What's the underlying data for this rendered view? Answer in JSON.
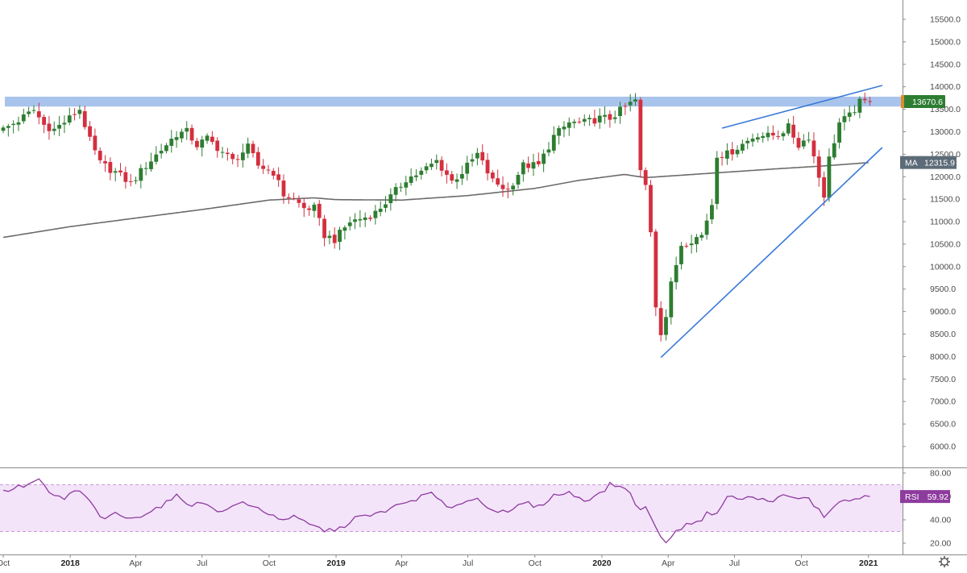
{
  "chart_data": [
    {
      "type": "candlestick",
      "title": "",
      "ylim": [
        5500,
        15800
      ],
      "yticks": [
        6000,
        6500,
        7000,
        7500,
        8000,
        8500,
        9000,
        9500,
        10000,
        10500,
        11000,
        11500,
        12000,
        12500,
        13000,
        13500,
        14000,
        14500,
        15000,
        15500
      ],
      "yticks_labels": [
        "6000.0",
        "6500.0",
        "7000.0",
        "7500.0",
        "8000.0",
        "8500.0",
        "9000.0",
        "9500.0",
        "10000.0",
        "10500.0",
        "11000.0",
        "11500.0",
        "12000.0",
        "12500.0",
        "13000.0",
        "13500.0",
        "14000.0",
        "14500.0",
        "15000.0",
        "15500.0"
      ],
      "x_start": "2017-10-01",
      "x_end": "2021-01-19",
      "time_labels": [
        {
          "date": "2017-10-01",
          "label": "Oct",
          "bold": false
        },
        {
          "date": "2018-01-01",
          "label": "2018",
          "bold": true
        },
        {
          "date": "2018-04-01",
          "label": "Apr",
          "bold": false
        },
        {
          "date": "2018-07-01",
          "label": "Jul",
          "bold": false
        },
        {
          "date": "2018-10-01",
          "label": "Oct",
          "bold": false
        },
        {
          "date": "2019-01-01",
          "label": "2019",
          "bold": true
        },
        {
          "date": "2019-04-01",
          "label": "Apr",
          "bold": false
        },
        {
          "date": "2019-07-01",
          "label": "Jul",
          "bold": false
        },
        {
          "date": "2019-10-01",
          "label": "Oct",
          "bold": false
        },
        {
          "date": "2020-01-01",
          "label": "2020",
          "bold": true
        },
        {
          "date": "2020-04-01",
          "label": "Apr",
          "bold": false
        },
        {
          "date": "2020-07-01",
          "label": "Jul",
          "bold": false
        },
        {
          "date": "2020-10-01",
          "label": "Oct",
          "bold": false
        },
        {
          "date": "2021-01-01",
          "label": "2021",
          "bold": true
        }
      ],
      "close_anchors": [
        [
          "2017-10-01",
          13050
        ],
        [
          "2017-10-22",
          13250
        ],
        [
          "2017-11-12",
          13480
        ],
        [
          "2017-11-26",
          13150
        ],
        [
          "2017-12-10",
          13050
        ],
        [
          "2017-12-31",
          13300
        ],
        [
          "2018-01-14",
          13500
        ],
        [
          "2018-01-28",
          12800
        ],
        [
          "2018-02-11",
          12300
        ],
        [
          "2018-03-04",
          12100
        ],
        [
          "2018-03-25",
          11850
        ],
        [
          "2018-04-15",
          12250
        ],
        [
          "2018-05-06",
          12600
        ],
        [
          "2018-05-27",
          12950
        ],
        [
          "2018-06-10",
          13000
        ],
        [
          "2018-06-24",
          12700
        ],
        [
          "2018-07-08",
          12850
        ],
        [
          "2018-07-29",
          12550
        ],
        [
          "2018-08-12",
          12350
        ],
        [
          "2018-09-02",
          12650
        ],
        [
          "2018-09-16",
          12250
        ],
        [
          "2018-10-07",
          12100
        ],
        [
          "2018-10-21",
          11600
        ],
        [
          "2018-11-04",
          11500
        ],
        [
          "2018-11-18",
          11300
        ],
        [
          "2018-12-02",
          11300
        ],
        [
          "2018-12-16",
          10700
        ],
        [
          "2018-12-30",
          10600
        ],
        [
          "2019-01-20",
          11000
        ],
        [
          "2019-02-10",
          11100
        ],
        [
          "2019-02-24",
          11200
        ],
        [
          "2019-03-17",
          11550
        ],
        [
          "2019-04-07",
          11950
        ],
        [
          "2019-04-28",
          12100
        ],
        [
          "2019-05-19",
          12350
        ],
        [
          "2019-06-09",
          11900
        ],
        [
          "2019-06-23",
          12100
        ],
        [
          "2019-07-14",
          12500
        ],
        [
          "2019-08-04",
          11900
        ],
        [
          "2019-08-25",
          11700
        ],
        [
          "2019-09-15",
          12250
        ],
        [
          "2019-10-06",
          12250
        ],
        [
          "2019-10-27",
          12900
        ],
        [
          "2019-11-17",
          13200
        ],
        [
          "2019-12-08",
          13200
        ],
        [
          "2019-12-29",
          13300
        ],
        [
          "2020-01-12",
          13300
        ],
        [
          "2020-02-02",
          13550
        ],
        [
          "2020-02-16",
          13700
        ],
        [
          "2020-02-23",
          12100
        ],
        [
          "2020-03-01",
          11800
        ],
        [
          "2020-03-08",
          10800
        ],
        [
          "2020-03-15",
          9150
        ],
        [
          "2020-03-22",
          8550
        ],
        [
          "2020-03-29",
          8900
        ],
        [
          "2020-04-05",
          9600
        ],
        [
          "2020-04-19",
          10500
        ],
        [
          "2020-05-03",
          10600
        ],
        [
          "2020-05-17",
          10700
        ],
        [
          "2020-05-31",
          11400
        ],
        [
          "2020-06-07",
          12500
        ],
        [
          "2020-06-21",
          12500
        ],
        [
          "2020-07-05",
          12650
        ],
        [
          "2020-07-19",
          12800
        ],
        [
          "2020-08-02",
          12950
        ],
        [
          "2020-08-16",
          12900
        ],
        [
          "2020-08-30",
          12950
        ],
        [
          "2020-09-13",
          13100
        ],
        [
          "2020-09-27",
          12700
        ],
        [
          "2020-10-11",
          12900
        ],
        [
          "2020-10-25",
          12000
        ],
        [
          "2020-11-01",
          11600
        ],
        [
          "2020-11-08",
          12400
        ],
        [
          "2020-11-22",
          13200
        ],
        [
          "2020-12-06",
          13350
        ],
        [
          "2020-12-20",
          13650
        ],
        [
          "2021-01-03",
          13670.6
        ]
      ],
      "moving_average": {
        "name": "MA",
        "anchors": [
          [
            "2017-10-01",
            10650
          ],
          [
            "2018-01-01",
            10890
          ],
          [
            "2018-04-01",
            11080
          ],
          [
            "2018-07-01",
            11270
          ],
          [
            "2018-10-01",
            11480
          ],
          [
            "2018-12-01",
            11530
          ],
          [
            "2019-01-01",
            11490
          ],
          [
            "2019-04-01",
            11480
          ],
          [
            "2019-07-01",
            11580
          ],
          [
            "2019-10-01",
            11740
          ],
          [
            "2019-12-01",
            11920
          ],
          [
            "2020-02-01",
            12050
          ],
          [
            "2020-03-01",
            11980
          ],
          [
            "2020-06-01",
            12080
          ],
          [
            "2020-09-01",
            12180
          ],
          [
            "2020-11-01",
            12240
          ],
          [
            "2021-01-03",
            12315.9
          ]
        ]
      },
      "resistance_zone": {
        "low": 13560,
        "high": 13780,
        "color": "#a8c4ec"
      },
      "trendlines": [
        {
          "from": [
            "2020-03-22",
            7980
          ],
          "to": [
            "2021-01-20",
            12650
          ]
        },
        {
          "from": [
            "2020-06-14",
            13080
          ],
          "to": [
            "2021-01-20",
            14030
          ]
        }
      ],
      "colors": {
        "up": "#2e7d32",
        "down": "#d32f3f",
        "ma": "#6b6b6b",
        "trendline": "#3a7ad8",
        "last_price_tag": "#2e7d32",
        "ma_tag": "#5d6b78"
      },
      "last_price": {
        "value": "13670.6"
      },
      "ma_label": {
        "name": "MA",
        "value": "12315.9"
      }
    },
    {
      "type": "line",
      "name": "RSI",
      "ylim": [
        15,
        82
      ],
      "yticks": [
        20,
        40,
        60,
        80
      ],
      "yticks_labels": [
        "20.00",
        "40.00",
        "60.00",
        "80.00"
      ],
      "band": {
        "low": 30,
        "high": 70
      },
      "anchors": [
        [
          "2017-10-01",
          64
        ],
        [
          "2017-10-15",
          67
        ],
        [
          "2017-11-05",
          70
        ],
        [
          "2017-11-19",
          75
        ],
        [
          "2017-12-03",
          62
        ],
        [
          "2017-12-24",
          58
        ],
        [
          "2018-01-07",
          65
        ],
        [
          "2018-01-21",
          61
        ],
        [
          "2018-02-04",
          49
        ],
        [
          "2018-02-18",
          39
        ],
        [
          "2018-03-04",
          46
        ],
        [
          "2018-03-25",
          40
        ],
        [
          "2018-04-15",
          46
        ],
        [
          "2018-05-06",
          52
        ],
        [
          "2018-05-27",
          60
        ],
        [
          "2018-06-17",
          53
        ],
        [
          "2018-07-08",
          54
        ],
        [
          "2018-07-29",
          46
        ],
        [
          "2018-08-19",
          55
        ],
        [
          "2018-09-09",
          51
        ],
        [
          "2018-09-23",
          48
        ],
        [
          "2018-10-14",
          41
        ],
        [
          "2018-11-04",
          42
        ],
        [
          "2018-11-25",
          36
        ],
        [
          "2018-12-16",
          31
        ],
        [
          "2019-01-06",
          32
        ],
        [
          "2019-01-27",
          42
        ],
        [
          "2019-02-17",
          43
        ],
        [
          "2019-03-10",
          48
        ],
        [
          "2019-03-31",
          53
        ],
        [
          "2019-04-21",
          58
        ],
        [
          "2019-05-12",
          63
        ],
        [
          "2019-06-02",
          50
        ],
        [
          "2019-06-23",
          55
        ],
        [
          "2019-07-14",
          58
        ],
        [
          "2019-08-04",
          49
        ],
        [
          "2019-08-25",
          45
        ],
        [
          "2019-09-15",
          55
        ],
        [
          "2019-10-06",
          51
        ],
        [
          "2019-10-27",
          61
        ],
        [
          "2019-11-17",
          63
        ],
        [
          "2019-12-08",
          57
        ],
        [
          "2019-12-29",
          62
        ],
        [
          "2020-01-12",
          70
        ],
        [
          "2020-02-02",
          68
        ],
        [
          "2020-02-23",
          48
        ],
        [
          "2020-03-01",
          50
        ],
        [
          "2020-03-15",
          35
        ],
        [
          "2020-03-22",
          24
        ],
        [
          "2020-03-29",
          22
        ],
        [
          "2020-04-12",
          29
        ],
        [
          "2020-04-26",
          38
        ],
        [
          "2020-05-10",
          37
        ],
        [
          "2020-05-24",
          45
        ],
        [
          "2020-06-07",
          47
        ],
        [
          "2020-06-14",
          52
        ],
        [
          "2020-06-21",
          60
        ],
        [
          "2020-07-05",
          58
        ],
        [
          "2020-07-26",
          59
        ],
        [
          "2020-08-16",
          56
        ],
        [
          "2020-09-06",
          60
        ],
        [
          "2020-09-27",
          58
        ],
        [
          "2020-10-11",
          58
        ],
        [
          "2020-10-25",
          48
        ],
        [
          "2020-11-01",
          42
        ],
        [
          "2020-11-15",
          53
        ],
        [
          "2020-12-06",
          57
        ],
        [
          "2020-12-27",
          59
        ],
        [
          "2021-01-03",
          59.92
        ]
      ],
      "colors": {
        "line": "#8e3b9e",
        "band_fill": "#f3e4fa",
        "band_border": "#c79ad6",
        "tag": "#8e3b9e"
      },
      "last_value": {
        "name": "RSI",
        "value": "59.92"
      }
    }
  ]
}
